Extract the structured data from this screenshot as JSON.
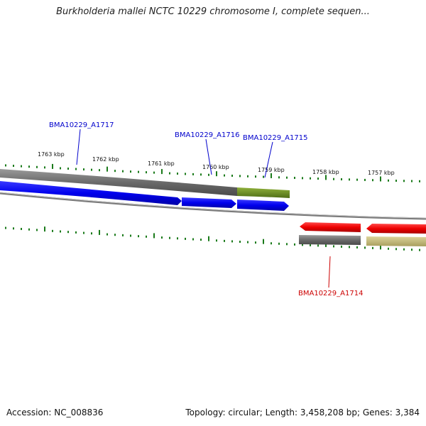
{
  "title": "Burkholderia mallei NCTC 10229 chromosome I, complete sequen...",
  "footer": {
    "accession": "Accession: NC_008836",
    "summary": "Topology: circular; Length: 3,458,208 bp; Genes: 3,384"
  },
  "ticks": [
    "1763 kbp",
    "1762 kbp",
    "1761 kbp",
    "1760 kbp",
    "1759 kbp",
    "1758 kbp",
    "1757 kbp"
  ],
  "genes": [
    {
      "label": "BMA10229_A1717",
      "color": "#0000cc"
    },
    {
      "label": "BMA10229_A1716",
      "color": "#0000cc"
    },
    {
      "label": "BMA10229_A1715",
      "color": "#0000cc"
    },
    {
      "label": "BMA10229_A1714",
      "color": "#cc0000"
    }
  ],
  "colors": {
    "forward_gene": "#0000ee",
    "reverse_gene": "#ee0000",
    "cds_gray": "#6e6e6e",
    "feature_olive": "#6b8e23",
    "feature_khaki": "#c8c080",
    "gc_skew": "#1a7a1a",
    "backbone": "#808080"
  }
}
